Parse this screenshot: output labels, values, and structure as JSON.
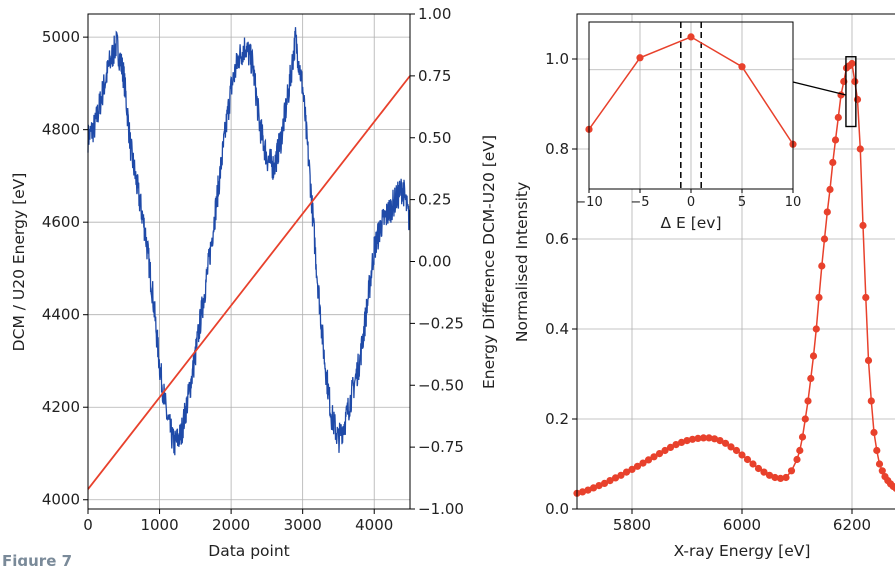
{
  "figure_caption": "Figure 7",
  "chart_data": [
    {
      "type": "line",
      "xlabel": "Data point",
      "ylabel": "DCM / U20 Energy [eV]",
      "ylabel_right": "Energy Difference DCM-U20 [eV]",
      "xlim": [
        0,
        4500
      ],
      "ylim": [
        3980,
        5050
      ],
      "ylim_right": [
        -1.0,
        1.0
      ],
      "xticks": [
        "0",
        "1000",
        "2000",
        "3000",
        "4000"
      ],
      "yticks": [
        "4000",
        "4200",
        "4400",
        "4600",
        "4800",
        "5000"
      ],
      "yticks_right": [
        "1.00",
        "0.75",
        "0.50",
        "0.25",
        "0.00",
        "−0.25",
        "−0.50",
        "−0.75",
        "−1.00"
      ],
      "grid": true,
      "series": [
        {
          "axis": "right",
          "color": "#e8412c",
          "x": [
            0,
            4500
          ],
          "y": [
            -0.92,
            0.75
          ]
        },
        {
          "axis": "right",
          "color": "#1f4aa8",
          "noise": 0.06,
          "x": [
            0,
            100,
            200,
            300,
            400,
            500,
            600,
            700,
            800,
            900,
            1000,
            1100,
            1200,
            1300,
            1400,
            1500,
            1600,
            1700,
            1800,
            1900,
            2000,
            2100,
            2200,
            2300,
            2400,
            2500,
            2600,
            2700,
            2800,
            2900,
            3000,
            3100,
            3200,
            3300,
            3400,
            3500,
            3600,
            3700,
            3800,
            3900,
            4000,
            4100,
            4200,
            4300,
            4400,
            4500
          ],
          "y": [
            0.5,
            0.55,
            0.68,
            0.8,
            0.88,
            0.75,
            0.45,
            0.28,
            0.12,
            -0.12,
            -0.42,
            -0.62,
            -0.74,
            -0.7,
            -0.55,
            -0.38,
            -0.18,
            0.02,
            0.25,
            0.48,
            0.7,
            0.82,
            0.87,
            0.8,
            0.55,
            0.42,
            0.38,
            0.5,
            0.68,
            0.9,
            0.7,
            0.35,
            -0.05,
            -0.38,
            -0.62,
            -0.72,
            -0.64,
            -0.52,
            -0.4,
            -0.18,
            0.05,
            0.15,
            0.2,
            0.25,
            0.3,
            0.15
          ]
        }
      ]
    },
    {
      "type": "line",
      "xlabel": "X-ray Energy [eV]",
      "ylabel": "Normalised Intensity",
      "xlim": [
        5700,
        6300
      ],
      "ylim": [
        0.0,
        1.1
      ],
      "xticks": [
        "5800",
        "6000",
        "6200"
      ],
      "yticks": [
        "0.0",
        "0.2",
        "0.4",
        "0.6",
        "0.8",
        "1.0"
      ],
      "grid": true,
      "series": [
        {
          "color": "#e8412c",
          "x": [
            5700,
            5710,
            5720,
            5730,
            5740,
            5750,
            5760,
            5770,
            5780,
            5790,
            5800,
            5810,
            5820,
            5830,
            5840,
            5850,
            5860,
            5870,
            5880,
            5890,
            5900,
            5910,
            5920,
            5930,
            5940,
            5950,
            5960,
            5970,
            5980,
            5990,
            6000,
            6010,
            6020,
            6030,
            6040,
            6050,
            6060,
            6070,
            6080,
            6090,
            6100,
            6105,
            6110,
            6115,
            6120,
            6125,
            6130,
            6135,
            6140,
            6145,
            6150,
            6155,
            6160,
            6165,
            6170,
            6175,
            6180,
            6185,
            6190,
            6195,
            6200,
            6205,
            6210,
            6215,
            6220,
            6225,
            6230,
            6235,
            6240,
            6245,
            6250,
            6255,
            6260,
            6265,
            6270,
            6275,
            6280,
            6285,
            6290,
            6295,
            6300
          ],
          "y": [
            0.035,
            0.038,
            0.042,
            0.047,
            0.052,
            0.057,
            0.063,
            0.069,
            0.075,
            0.082,
            0.088,
            0.095,
            0.102,
            0.109,
            0.116,
            0.123,
            0.13,
            0.137,
            0.143,
            0.148,
            0.152,
            0.155,
            0.157,
            0.158,
            0.158,
            0.156,
            0.152,
            0.146,
            0.138,
            0.13,
            0.12,
            0.11,
            0.1,
            0.09,
            0.082,
            0.075,
            0.07,
            0.068,
            0.07,
            0.085,
            0.11,
            0.13,
            0.16,
            0.2,
            0.24,
            0.29,
            0.34,
            0.4,
            0.47,
            0.54,
            0.6,
            0.66,
            0.71,
            0.77,
            0.82,
            0.87,
            0.92,
            0.95,
            0.98,
            0.985,
            0.99,
            0.95,
            0.91,
            0.8,
            0.63,
            0.47,
            0.33,
            0.24,
            0.17,
            0.13,
            0.1,
            0.085,
            0.072,
            0.063,
            0.056,
            0.05,
            0.046,
            0.043,
            0.04,
            0.038,
            0.036
          ]
        }
      ],
      "inset": {
        "xlabel": "Δ E [ev]",
        "xlim": [
          -10,
          10
        ],
        "ylim": [
          0.8,
          1.08
        ],
        "xticks": [
          "−10",
          "−5",
          "0",
          "5",
          "10"
        ],
        "yticks": [
          "0.8",
          "1.0"
        ],
        "vlines": [
          -1,
          1
        ],
        "grid": true,
        "series": [
          {
            "color": "#e8412c",
            "x": [
              -10,
              -5,
              0,
              5,
              10
            ],
            "y": [
              0.9,
              1.02,
              1.055,
              1.005,
              0.875
            ]
          }
        ]
      }
    }
  ]
}
